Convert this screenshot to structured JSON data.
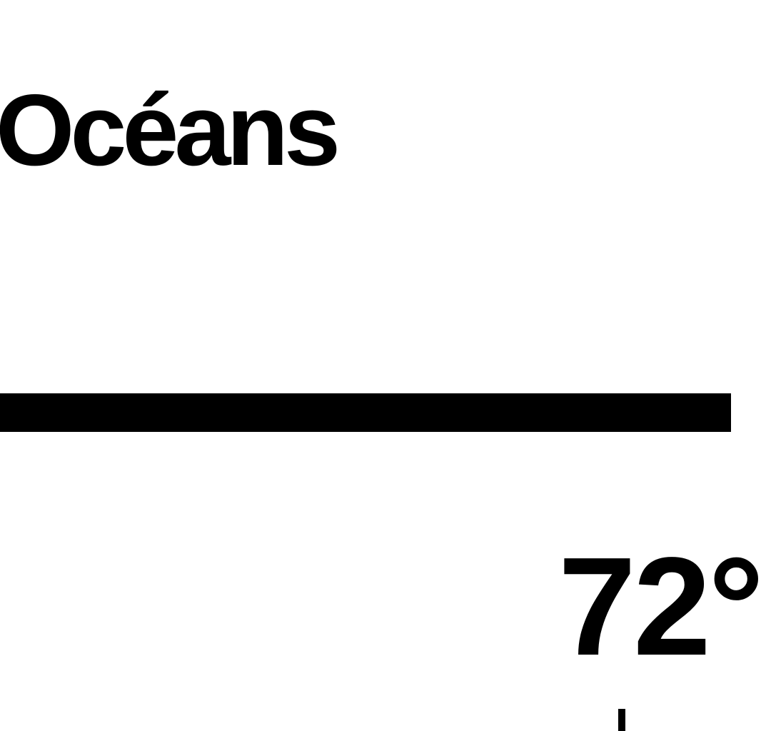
{
  "header": {
    "title": "Océans"
  },
  "weather": {
    "temperature": "72°"
  },
  "colors": {
    "foreground": "#000000",
    "background": "#ffffff"
  }
}
